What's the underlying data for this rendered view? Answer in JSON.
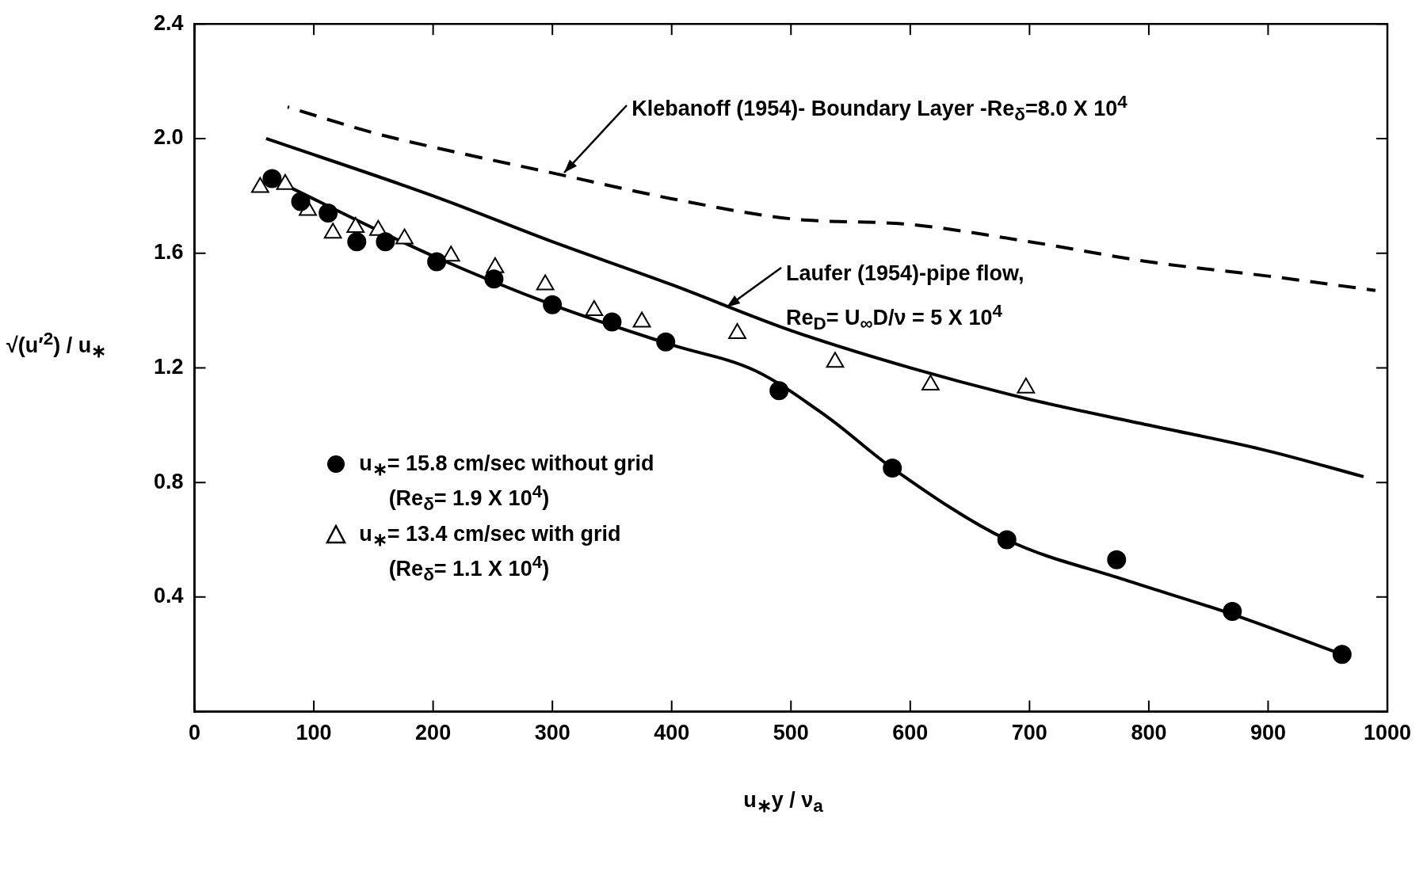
{
  "chart_data": {
    "type": "scatter",
    "xlabel": "u$_{∗}$y / ν$_{a}$",
    "ylabel": "√(u′$^{2}$) / u$_{∗}$",
    "xlim": [
      0,
      1000
    ],
    "xticks": [
      0,
      100,
      200,
      300,
      400,
      500,
      600,
      700,
      800,
      900,
      1000
    ],
    "ylim": [
      0,
      2.4
    ],
    "yticks": [
      {
        "value": 0,
        "label": null
      },
      0.4,
      0.8,
      1.2,
      1.6,
      {
        "value": 2,
        "label": "2.0"
      },
      2.4
    ],
    "grid": false,
    "legend": "bottom left",
    "series": [
      {
        "name": "u$_{∗}$= 15.8 cm/sec without grid\n(Re$_{δ}$= 1.9 X 10$^{4}$)",
        "type": "scatter",
        "marker": "circle",
        "color": "#000000",
        "x": [
          65,
          89,
          112,
          136,
          160,
          203,
          251,
          300,
          350,
          395,
          490,
          585,
          681,
          773,
          870,
          962
        ],
        "values": [
          1.86,
          1.78,
          1.74,
          1.64,
          1.64,
          1.57,
          1.51,
          1.42,
          1.36,
          1.29,
          1.12,
          0.85,
          0.6,
          0.53,
          0.35,
          0.2
        ]
      },
      {
        "name": "u$_{∗}$= 13.4 cm/sec with grid\n(Re$_{δ}$= 1.1 X 10$^{4}$)",
        "type": "scatter",
        "marker": "triangle",
        "color": "#000000",
        "x": [
          55,
          76,
          95,
          116,
          135,
          154,
          176,
          215,
          252,
          294,
          335,
          375,
          455,
          537,
          617,
          697
        ],
        "values": [
          1.83,
          1.84,
          1.75,
          1.67,
          1.69,
          1.68,
          1.65,
          1.59,
          1.55,
          1.49,
          1.4,
          1.36,
          1.32,
          1.22,
          1.14,
          1.13
        ]
      },
      {
        "type": "line",
        "line_style": "dashed",
        "color": "#000000",
        "x": [
          78,
          150,
          200,
          300,
          400,
          500,
          600,
          700,
          800,
          900,
          990
        ],
        "values": [
          2.11,
          2.02,
          1.97,
          1.88,
          1.79,
          1.72,
          1.7,
          1.64,
          1.57,
          1.52,
          1.47
        ]
      },
      {
        "type": "line",
        "line_style": "solid",
        "color": "#000000",
        "x": [
          60,
          200,
          300,
          400,
          500,
          600,
          700,
          800,
          900,
          980
        ],
        "values": [
          2.0,
          1.8,
          1.64,
          1.49,
          1.33,
          1.2,
          1.09,
          1.0,
          0.91,
          0.82
        ]
      },
      {
        "type": "line",
        "line_style": "solid",
        "color": "#000000",
        "x": [
          65,
          200,
          300,
          400,
          470,
          530,
          585,
          681,
          780,
          870,
          962
        ],
        "values": [
          1.86,
          1.59,
          1.42,
          1.28,
          1.19,
          1.03,
          0.85,
          0.6,
          0.46,
          0.34,
          0.2
        ]
      }
    ],
    "annotations": [
      {
        "text": "Klebanoff (1954)- Boundary Layer -Re$_{δ}$=8.0 X 10$^{4}$",
        "x": 310,
        "y": 1.88
      },
      {
        "text": "Laufer (1954)-pipe flow,\nRe$_{D}$= U$_{∞}$D/ν = 5 X 10$^{4}$",
        "x": 446,
        "y": 1.41
      }
    ]
  }
}
